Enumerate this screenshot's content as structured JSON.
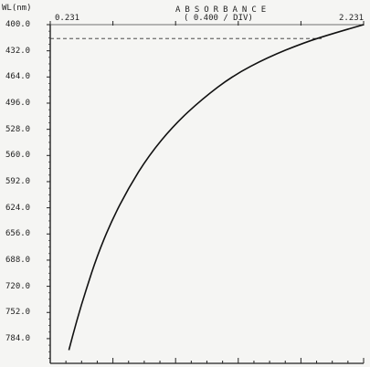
{
  "chart_data": {
    "type": "line",
    "title": "ABSORBANCE",
    "subtitle": "( 0.400 / DIV)",
    "ylabel": "WL(nm)",
    "x_scale_labels": {
      "left": "0.231",
      "right": "2.231"
    },
    "xlim": [
      0.231,
      2.231
    ],
    "ylim": [
      400.0,
      800.0
    ],
    "y_inverted": true,
    "yticks": [
      "400.0",
      "432.0",
      "464.0",
      "496.0",
      "528.0",
      "560.0",
      "592.0",
      "624.0",
      "656.0",
      "688.0",
      "720.0",
      "752.0",
      "784.0"
    ],
    "grid": false,
    "series": [
      {
        "x": [
          2.231,
          2.05,
          1.85,
          1.62,
          1.4,
          1.2,
          1.02,
          0.86,
          0.73,
          0.62,
          0.53,
          0.46,
          0.4,
          0.35
        ],
        "y": [
          400,
          410,
          422,
          440,
          462,
          491,
          523,
          560,
          600,
          641,
          683,
          724,
          762,
          798
        ]
      }
    ],
    "reference_line": {
      "style": "dashed",
      "y": 417
    }
  }
}
